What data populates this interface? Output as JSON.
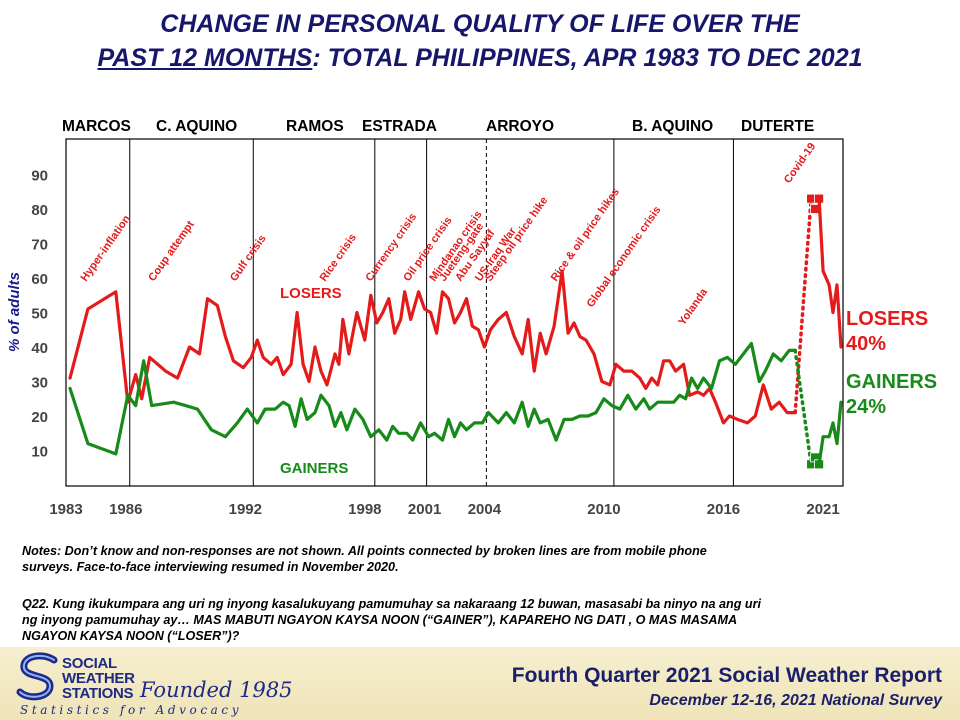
{
  "title": {
    "line1": "CHANGE IN PERSONAL QUALITY OF LIFE OVER THE",
    "line2_underlined": "PAST 12 MONTHS",
    "line2_rest": ": TOTAL PHILIPPINES, APR 1983 TO DEC 2021"
  },
  "presidents": [
    "MARCOS",
    "C. AQUINO",
    "RAMOS",
    "ESTRADA",
    "ARROYO",
    "B. AQUINO",
    "DUTERTE"
  ],
  "colors": {
    "losers": "#e31b1b",
    "gainers": "#178a1a",
    "title": "#16166b"
  },
  "chart_data": {
    "type": "line",
    "ylabel": "% of adults",
    "ylim": [
      0,
      100
    ],
    "yticks": [
      10,
      20,
      30,
      40,
      50,
      60,
      70,
      80,
      90
    ],
    "xlim": [
      1983,
      2022
    ],
    "xticks": [
      1983,
      1986,
      1992,
      1998,
      2001,
      2004,
      2010,
      2016,
      2021
    ],
    "president_boundaries": [
      1986.2,
      1992.4,
      1998.5,
      2001.1,
      2010.5,
      2016.5
    ],
    "dashed_boundary": 2004.1,
    "events": [
      {
        "label": "Hyper-inflation",
        "x": 1984.0
      },
      {
        "label": "Coup attempt",
        "x": 1987.4
      },
      {
        "label": "Gulf crisis",
        "x": 1991.5
      },
      {
        "label": "Rice crisis",
        "x": 1996.0
      },
      {
        "label": "Currency crisis",
        "x": 1998.3
      },
      {
        "label": "Oil price crisis",
        "x": 2000.2
      },
      {
        "label": "Mindanao crisis",
        "x": 2001.5
      },
      {
        "label": "Jueteng-gate",
        "x": 2002.0
      },
      {
        "label": "Abu Sayyaf",
        "x": 2002.8
      },
      {
        "label": "US-Iraq War",
        "x": 2003.8
      },
      {
        "label": "Steep oil price hike",
        "x": 2004.3
      },
      {
        "label": "Rice & oil price hikes",
        "x": 2007.6
      },
      {
        "label": "Global economic crisis",
        "x": 2009.4
      },
      {
        "label": "Yolanda",
        "x": 2014.0
      },
      {
        "label": "Covid-19",
        "x": 2019.3
      }
    ],
    "series": [
      {
        "name": "LOSERS",
        "color": "#e31b1b",
        "last_value": "40%",
        "points": [
          [
            1983.2,
            31
          ],
          [
            1984.1,
            51
          ],
          [
            1985.5,
            56
          ],
          [
            1986.1,
            24
          ],
          [
            1986.5,
            32
          ],
          [
            1986.8,
            25
          ],
          [
            1987.2,
            37
          ],
          [
            1988.0,
            33
          ],
          [
            1988.6,
            31
          ],
          [
            1989.2,
            40
          ],
          [
            1989.7,
            38
          ],
          [
            1990.1,
            54
          ],
          [
            1990.6,
            52
          ],
          [
            1991.0,
            43
          ],
          [
            1991.4,
            36
          ],
          [
            1991.9,
            34
          ],
          [
            1992.3,
            37
          ],
          [
            1992.6,
            42
          ],
          [
            1992.9,
            37
          ],
          [
            1993.3,
            35
          ],
          [
            1993.6,
            37
          ],
          [
            1993.9,
            32
          ],
          [
            1994.3,
            35
          ],
          [
            1994.6,
            50
          ],
          [
            1994.9,
            35
          ],
          [
            1995.2,
            30
          ],
          [
            1995.5,
            40
          ],
          [
            1995.8,
            33
          ],
          [
            1996.1,
            29
          ],
          [
            1996.5,
            38
          ],
          [
            1996.7,
            35
          ],
          [
            1996.9,
            48
          ],
          [
            1997.2,
            38
          ],
          [
            1997.6,
            50
          ],
          [
            1998.0,
            42
          ],
          [
            1998.3,
            55
          ],
          [
            1998.6,
            47
          ],
          [
            1998.9,
            50
          ],
          [
            1999.2,
            54
          ],
          [
            1999.5,
            44
          ],
          [
            1999.8,
            48
          ],
          [
            2000.0,
            56
          ],
          [
            2000.3,
            48
          ],
          [
            2000.7,
            56
          ],
          [
            2001.0,
            51
          ],
          [
            2001.3,
            50
          ],
          [
            2001.6,
            44
          ],
          [
            2001.9,
            56
          ],
          [
            2002.2,
            54
          ],
          [
            2002.5,
            47
          ],
          [
            2002.8,
            50
          ],
          [
            2003.1,
            54
          ],
          [
            2003.4,
            46
          ],
          [
            2003.7,
            45
          ],
          [
            2004.0,
            40
          ],
          [
            2004.3,
            45
          ],
          [
            2004.7,
            48
          ],
          [
            2005.1,
            50
          ],
          [
            2005.5,
            43
          ],
          [
            2005.9,
            38
          ],
          [
            2006.2,
            48
          ],
          [
            2006.5,
            33
          ],
          [
            2006.8,
            44
          ],
          [
            2007.1,
            38
          ],
          [
            2007.5,
            46
          ],
          [
            2007.9,
            62
          ],
          [
            2008.2,
            44
          ],
          [
            2008.5,
            47
          ],
          [
            2008.8,
            43
          ],
          [
            2009.1,
            42
          ],
          [
            2009.5,
            38
          ],
          [
            2009.9,
            30
          ],
          [
            2010.3,
            29
          ],
          [
            2010.6,
            35
          ],
          [
            2011.0,
            33
          ],
          [
            2011.4,
            33
          ],
          [
            2011.8,
            31
          ],
          [
            2012.1,
            28
          ],
          [
            2012.4,
            31
          ],
          [
            2012.7,
            29
          ],
          [
            2013.0,
            36
          ],
          [
            2013.3,
            36
          ],
          [
            2013.6,
            33
          ],
          [
            2014.0,
            35
          ],
          [
            2014.3,
            26
          ],
          [
            2014.7,
            27
          ],
          [
            2015.0,
            26
          ],
          [
            2015.3,
            28
          ],
          [
            2015.6,
            24
          ],
          [
            2016.0,
            18
          ],
          [
            2016.3,
            20
          ],
          [
            2016.7,
            19
          ],
          [
            2017.2,
            18
          ],
          [
            2017.6,
            20
          ],
          [
            2018.0,
            29
          ],
          [
            2018.4,
            22
          ],
          [
            2018.8,
            24
          ],
          [
            2019.2,
            21
          ],
          [
            2019.6,
            21
          ]
        ],
        "mobile_points": [
          [
            2020.4,
            83
          ],
          [
            2020.6,
            80
          ],
          [
            2020.8,
            83
          ]
        ],
        "recent_points": [
          [
            2020.8,
            83
          ],
          [
            2021.0,
            62
          ],
          [
            2021.3,
            58
          ],
          [
            2021.5,
            50
          ],
          [
            2021.7,
            58
          ],
          [
            2021.9,
            40
          ]
        ]
      },
      {
        "name": "GAINERS",
        "color": "#178a1a",
        "last_value": "24%",
        "points": [
          [
            1983.2,
            28
          ],
          [
            1984.1,
            12
          ],
          [
            1985.5,
            9
          ],
          [
            1986.1,
            26
          ],
          [
            1986.5,
            23
          ],
          [
            1986.9,
            36
          ],
          [
            1987.3,
            23
          ],
          [
            1988.4,
            24
          ],
          [
            1989.0,
            23
          ],
          [
            1989.6,
            22
          ],
          [
            1990.3,
            16
          ],
          [
            1991.0,
            14
          ],
          [
            1991.6,
            18
          ],
          [
            1992.1,
            22
          ],
          [
            1992.6,
            18
          ],
          [
            1993.0,
            22
          ],
          [
            1993.5,
            22
          ],
          [
            1993.9,
            24
          ],
          [
            1994.2,
            23
          ],
          [
            1994.5,
            17
          ],
          [
            1994.8,
            25
          ],
          [
            1995.1,
            19
          ],
          [
            1995.5,
            21
          ],
          [
            1995.8,
            26
          ],
          [
            1996.2,
            23
          ],
          [
            1996.5,
            17
          ],
          [
            1996.8,
            21
          ],
          [
            1997.1,
            16
          ],
          [
            1997.5,
            22
          ],
          [
            1997.9,
            19
          ],
          [
            1998.3,
            14
          ],
          [
            1998.7,
            16
          ],
          [
            1999.1,
            13
          ],
          [
            1999.4,
            17
          ],
          [
            1999.7,
            15
          ],
          [
            2000.1,
            15
          ],
          [
            2000.4,
            13
          ],
          [
            2000.8,
            18
          ],
          [
            2001.2,
            14
          ],
          [
            2001.5,
            15
          ],
          [
            2001.9,
            13
          ],
          [
            2002.2,
            19
          ],
          [
            2002.5,
            14
          ],
          [
            2002.8,
            18
          ],
          [
            2003.1,
            16
          ],
          [
            2003.5,
            18
          ],
          [
            2003.9,
            18
          ],
          [
            2004.2,
            21
          ],
          [
            2004.7,
            18
          ],
          [
            2005.1,
            21
          ],
          [
            2005.5,
            18
          ],
          [
            2005.9,
            24
          ],
          [
            2006.2,
            17
          ],
          [
            2006.5,
            22
          ],
          [
            2006.8,
            18
          ],
          [
            2007.2,
            19
          ],
          [
            2007.6,
            13
          ],
          [
            2008.0,
            19
          ],
          [
            2008.4,
            19
          ],
          [
            2008.8,
            20
          ],
          [
            2009.2,
            20
          ],
          [
            2009.6,
            21
          ],
          [
            2010.0,
            25
          ],
          [
            2010.4,
            23
          ],
          [
            2010.8,
            22
          ],
          [
            2011.2,
            26
          ],
          [
            2011.6,
            22
          ],
          [
            2012.0,
            25
          ],
          [
            2012.3,
            22
          ],
          [
            2012.7,
            24
          ],
          [
            2013.2,
            24
          ],
          [
            2013.5,
            24
          ],
          [
            2013.8,
            26
          ],
          [
            2014.1,
            25
          ],
          [
            2014.4,
            31
          ],
          [
            2014.7,
            28
          ],
          [
            2015.0,
            31
          ],
          [
            2015.4,
            28
          ],
          [
            2015.8,
            36
          ],
          [
            2016.2,
            37
          ],
          [
            2016.6,
            35
          ],
          [
            2017.0,
            38
          ],
          [
            2017.4,
            41
          ],
          [
            2017.8,
            30
          ],
          [
            2018.1,
            33
          ],
          [
            2018.5,
            38
          ],
          [
            2018.9,
            36
          ],
          [
            2019.3,
            39
          ],
          [
            2019.6,
            39
          ]
        ],
        "mobile_points": [
          [
            2020.4,
            6
          ],
          [
            2020.6,
            8
          ],
          [
            2020.8,
            6
          ]
        ],
        "recent_points": [
          [
            2020.8,
            6
          ],
          [
            2021.0,
            14
          ],
          [
            2021.3,
            14
          ],
          [
            2021.5,
            18
          ],
          [
            2021.7,
            12
          ],
          [
            2021.9,
            24
          ]
        ]
      }
    ]
  },
  "notes": {
    "line1": "Notes: Don’t know and non-responses are not shown. All points connected by broken lines are from mobile phone",
    "line2": "surveys. Face-to-face  interviewing resumed in November 2020.",
    "q1": "Q22. Kung ikukumpara ang uri ng inyong kasalukuyang pamumuhay sa nakaraang 12 buwan, masasabi ba ninyo na ang uri",
    "q2": "ng inyong pamumuhay ay… MAS MABUTI NGAYON KAYSA NOON (“GAINER”), KAPAREHO NG DATI , O MAS MASAMA",
    "q3": "NGAYON KAYSA NOON (“LOSER”)?"
  },
  "footer": {
    "report_title": "Fourth Quarter 2021 Social Weather Report",
    "survey": "December 12-16, 2021 National Survey",
    "org_line1": "SOCIAL",
    "org_line2": "WEATHER",
    "org_line3": "STATIONS",
    "founded": "Founded 1985",
    "tagline": "Statistics for Advocacy"
  }
}
